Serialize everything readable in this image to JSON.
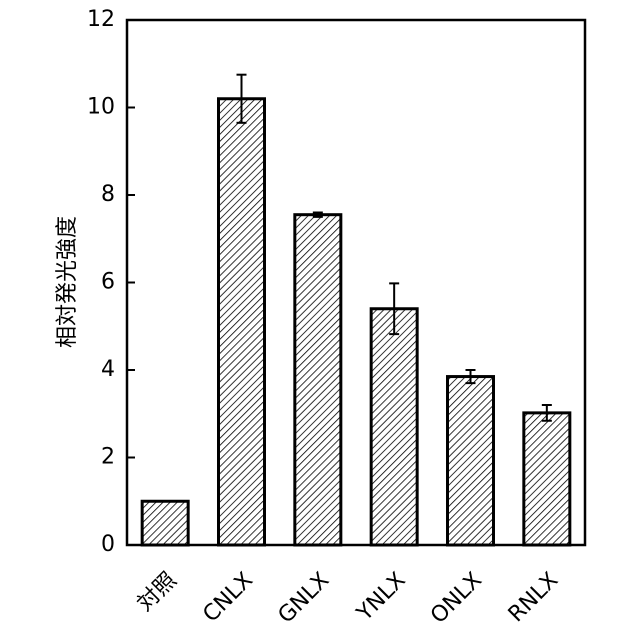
{
  "chart_data": {
    "type": "bar",
    "y_label": "相対発光強度",
    "categories": [
      "対照",
      "CNLX",
      "GNLX",
      "YNLX",
      "ONLX",
      "RNLX"
    ],
    "values": [
      1.0,
      10.2,
      7.55,
      5.4,
      3.85,
      3.02
    ],
    "errors": [
      null,
      0.55,
      0.05,
      0.58,
      0.15,
      0.18
    ],
    "color": "#000000",
    "ylim": [
      0,
      12
    ],
    "yticks": [
      0,
      2,
      4,
      6,
      8,
      10,
      12
    ],
    "grid": false
  }
}
